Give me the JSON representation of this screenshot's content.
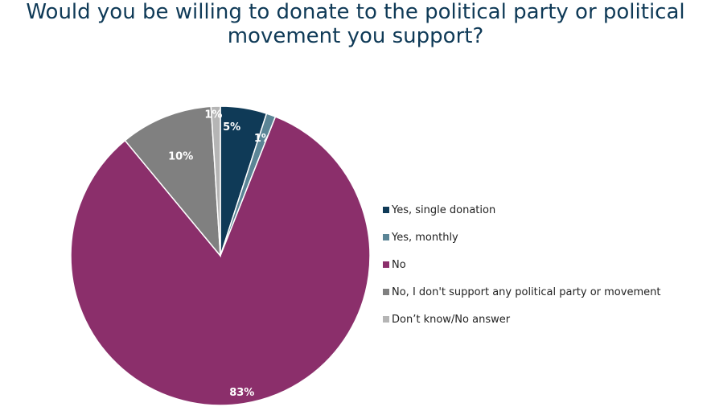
{
  "chart_data": {
    "type": "pie",
    "title_lines": [
      "Would you be willing to donate to the political party or political",
      "movement you support?"
    ],
    "legend_position": "right",
    "slices": [
      {
        "name": "Yes, single donation",
        "value": 5,
        "label": "5%",
        "color": "#0f3a57"
      },
      {
        "name": "Yes, monthly",
        "value": 1,
        "label": "1%",
        "color": "#5b8596"
      },
      {
        "name": "No",
        "value": 83,
        "label": "83%",
        "color": "#8b2f6b"
      },
      {
        "name": "No, I don't support any political party or movement",
        "value": 10,
        "label": "10%",
        "color": "#808080"
      },
      {
        "name": "Don’t know/No answer",
        "value": 1,
        "label": "1%",
        "color": "#b5b5b5"
      }
    ]
  }
}
